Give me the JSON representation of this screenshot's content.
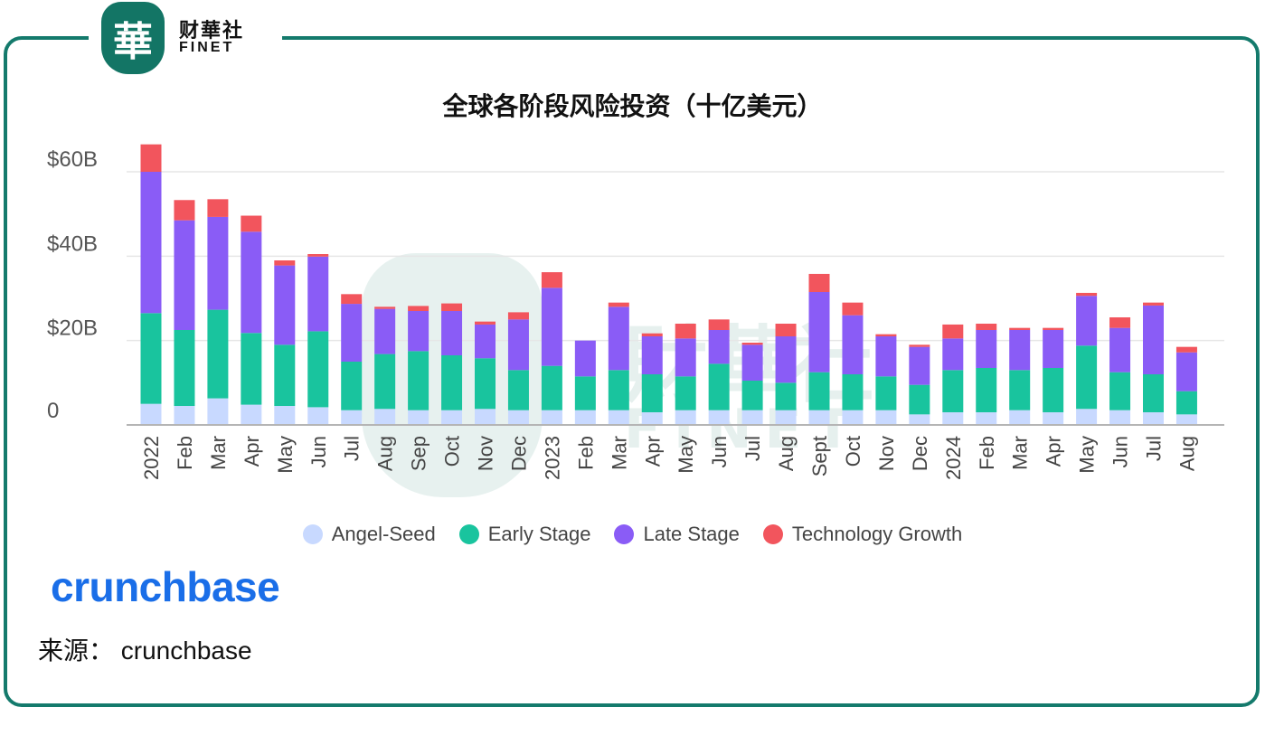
{
  "logo": {
    "seal": "華",
    "cn": "财華社",
    "en": "FINET"
  },
  "watermark": {
    "cn": "財華社",
    "en": "FINET"
  },
  "chart_data": {
    "type": "bar",
    "stacked": true,
    "title": "全球各阶段风险投资（十亿美元）",
    "xlabel": "",
    "ylabel": "",
    "ylim": [
      0,
      65
    ],
    "yticks": [
      0,
      20,
      40,
      60
    ],
    "ytick_labels": [
      "0",
      "$20B",
      "$40B",
      "$60B"
    ],
    "grid": true,
    "legend_position": "bottom",
    "categories": [
      "2022",
      "Feb",
      "Mar",
      "Apr",
      "May",
      "Jun",
      "Jul",
      "Aug",
      "Sep",
      "Oct",
      "Nov",
      "Dec",
      "2023",
      "Feb",
      "Mar",
      "Apr",
      "May",
      "Jun",
      "Jul",
      "Aug",
      "Sept",
      "Oct",
      "Nov",
      "Dec",
      "2024",
      "Feb",
      "Mar",
      "Apr",
      "May",
      "Jun",
      "Jul",
      "Aug"
    ],
    "series": [
      {
        "name": "Angel-Seed",
        "color": "#c8d9ff",
        "values": [
          5,
          4.5,
          6.3,
          4.8,
          4.5,
          4.2,
          3.5,
          3.8,
          3.5,
          3.5,
          3.8,
          3.5,
          3.5,
          3.5,
          3.5,
          3,
          3.5,
          3.5,
          3.5,
          3.5,
          3.5,
          3.5,
          3.5,
          2.5,
          3,
          3,
          3.5,
          3,
          3.8,
          3.5,
          3,
          2.5
        ]
      },
      {
        "name": "Early Stage",
        "color": "#19c49e",
        "values": [
          21.5,
          18,
          21,
          17,
          14.5,
          18,
          11.5,
          13,
          14,
          13,
          12,
          9.5,
          10.5,
          8,
          9.5,
          9,
          8,
          11,
          7,
          6.5,
          9,
          8.5,
          8,
          7,
          10,
          10.5,
          9.5,
          10.5,
          15,
          9,
          9,
          5.5
        ]
      },
      {
        "name": "Late Stage",
        "color": "#8a5cf6",
        "values": [
          33.5,
          26,
          22,
          24,
          18.8,
          17.7,
          13.7,
          10.7,
          9.5,
          10.5,
          8,
          12,
          18.5,
          8.5,
          15,
          9,
          9,
          8,
          8.5,
          11,
          19,
          14,
          9.5,
          9,
          7.5,
          9,
          9.5,
          9,
          11.8,
          10.5,
          16.3,
          9.2
        ]
      },
      {
        "name": "Technology Growth",
        "color": "#f2555d",
        "values": [
          6.5,
          4.8,
          4.2,
          3.8,
          1.2,
          0.6,
          2.3,
          0.5,
          1.2,
          1.8,
          0.7,
          1.7,
          3.7,
          0,
          1,
          0.7,
          3.5,
          2.5,
          0.5,
          3,
          4.3,
          3,
          0.5,
          0.5,
          3.3,
          1.5,
          0.5,
          0.5,
          0.7,
          2.5,
          0.7,
          1.3
        ]
      }
    ]
  },
  "source": {
    "brand": "crunchbase",
    "text": "来源： crunchbase"
  }
}
